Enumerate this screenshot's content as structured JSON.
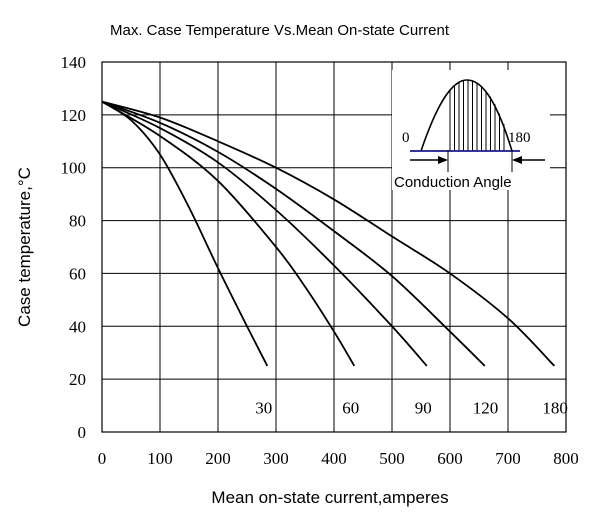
{
  "chart_data": {
    "type": "line",
    "title": "Max. Case Temperature Vs.Mean On-state Current",
    "xlabel": "Mean on-state current,amperes",
    "ylabel": "Case temperature,°C",
    "xlim": [
      0,
      800
    ],
    "ylim": [
      0,
      140
    ],
    "x_ticks": [
      "0",
      "100",
      "200",
      "300",
      "400",
      "500",
      "600",
      "700",
      "800"
    ],
    "y_ticks": [
      "0",
      "20",
      "40",
      "60",
      "80",
      "100",
      "120",
      "140"
    ],
    "grid": true,
    "series": [
      {
        "name": "30",
        "x": [
          0,
          50,
          100,
          150,
          200,
          250,
          285
        ],
        "y": [
          125,
          118,
          105,
          85,
          62,
          40,
          25
        ]
      },
      {
        "name": "60",
        "x": [
          0,
          100,
          200,
          300,
          350,
          400,
          435
        ],
        "y": [
          125,
          112,
          95,
          70,
          55,
          38,
          25
        ]
      },
      {
        "name": "90",
        "x": [
          0,
          100,
          200,
          300,
          400,
          500,
          560
        ],
        "y": [
          125,
          115,
          102,
          84,
          63,
          40,
          25
        ]
      },
      {
        "name": "120",
        "x": [
          0,
          100,
          200,
          300,
          400,
          500,
          600,
          660
        ],
        "y": [
          125,
          117,
          106,
          92,
          76,
          59,
          38,
          25
        ]
      },
      {
        "name": "180",
        "x": [
          0,
          100,
          200,
          300,
          400,
          500,
          600,
          700,
          780
        ],
        "y": [
          125,
          119,
          110,
          100,
          88,
          74,
          60,
          43,
          25
        ]
      }
    ],
    "inset": {
      "left_label": "0",
      "right_label": "180",
      "caption": "Conduction Angle"
    }
  }
}
